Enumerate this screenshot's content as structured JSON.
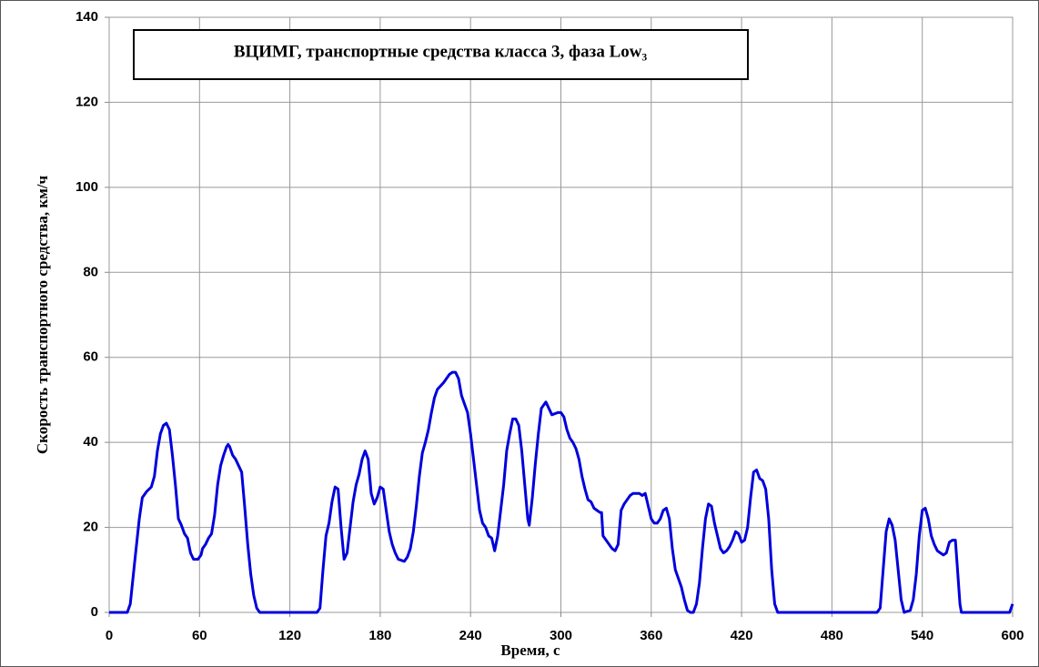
{
  "chart_data": {
    "type": "line",
    "title": "ВЦИМГ, транспортные средства класса 3, фаза Low₃",
    "x_label": "Время, с",
    "y_label": "Скорость транспортного средства, км/ч",
    "color": "#0000dd",
    "grid": true,
    "xlim": [
      0,
      600
    ],
    "xticks": [
      0,
      60,
      120,
      180,
      240,
      300,
      360,
      420,
      480,
      540,
      600
    ],
    "ylim": [
      0,
      140
    ],
    "yticks": [
      0,
      20,
      40,
      60,
      80,
      100,
      120,
      140
    ],
    "x": [
      0,
      12,
      14,
      17,
      20,
      22,
      25,
      28,
      30,
      32,
      34,
      36,
      38,
      40,
      42,
      44,
      46,
      48,
      50,
      52,
      54,
      56,
      59,
      61,
      62,
      64,
      66,
      68,
      70,
      72,
      74,
      76,
      78,
      79,
      80,
      82,
      84,
      86,
      88,
      90,
      92,
      94,
      96,
      98,
      100,
      138,
      140,
      142,
      144,
      146,
      148,
      150,
      152,
      154,
      156,
      158,
      160,
      162,
      164,
      166,
      168,
      170,
      172,
      174,
      176,
      178,
      180,
      182,
      184,
      186,
      188,
      190,
      192,
      196,
      198,
      200,
      202,
      204,
      206,
      208,
      210,
      212,
      214,
      216,
      218,
      222,
      226,
      228,
      230,
      232,
      234,
      236,
      238,
      240,
      242,
      244,
      246,
      248,
      250,
      252,
      254,
      256,
      258,
      260,
      262,
      264,
      266,
      268,
      270,
      272,
      274,
      276,
      278,
      279,
      281,
      283,
      285,
      287,
      290,
      292,
      294,
      298,
      300,
      302,
      304,
      306,
      308,
      310,
      312,
      314,
      316,
      318,
      320,
      322,
      324,
      326,
      327,
      328,
      330,
      332,
      334,
      336,
      338,
      340,
      342,
      344,
      346,
      348,
      352,
      354,
      356,
      358,
      360,
      362,
      364,
      366,
      368,
      370,
      372,
      374,
      376,
      378,
      380,
      382,
      384,
      386,
      388,
      390,
      392,
      394,
      396,
      398,
      400,
      402,
      404,
      406,
      408,
      410,
      412,
      414,
      416,
      418,
      420,
      422,
      424,
      426,
      428,
      430,
      432,
      434,
      436,
      438,
      440,
      442,
      444,
      510,
      512,
      514,
      516,
      518,
      520,
      522,
      524,
      526,
      528,
      532,
      534,
      536,
      538,
      540,
      542,
      544,
      546,
      548,
      550,
      552,
      554,
      556,
      558,
      560,
      562,
      563,
      565,
      566,
      598,
      600
    ],
    "values": [
      0,
      0,
      2,
      12,
      22,
      27,
      28.5,
      29.5,
      32,
      38,
      42,
      44,
      44.5,
      43,
      37,
      30,
      22,
      20.5,
      18.5,
      17.5,
      14,
      12.5,
      12.5,
      13.5,
      15,
      16,
      17.5,
      18.5,
      23,
      30,
      34.5,
      37,
      39,
      39.5,
      39,
      37,
      36,
      34.5,
      33,
      25,
      16,
      9,
      4,
      1,
      0,
      0,
      1,
      10,
      18,
      21,
      26,
      29.5,
      29,
      20,
      12.5,
      14,
      20,
      26,
      30,
      32.5,
      36,
      38,
      36,
      28,
      25.5,
      27,
      29.5,
      29,
      24,
      19,
      16,
      14,
      12.5,
      12,
      13,
      15,
      19,
      25,
      32,
      37.5,
      40,
      43,
      47,
      50.5,
      52.5,
      54,
      56,
      56.5,
      56.5,
      55,
      51,
      49,
      47,
      42,
      36,
      30,
      24,
      21,
      20,
      18,
      17.5,
      14.5,
      18,
      24,
      30,
      38,
      42,
      45.5,
      45.5,
      44,
      38,
      30,
      22,
      20.5,
      27,
      35,
      42,
      48,
      49.5,
      48,
      46.5,
      47,
      47,
      46,
      43,
      41,
      40,
      38.5,
      36,
      32,
      29,
      26.5,
      26,
      24.5,
      24,
      23.5,
      23.5,
      18,
      17,
      16,
      15,
      14.5,
      16,
      24,
      25.5,
      26.5,
      27.5,
      28,
      28,
      27.5,
      28,
      25,
      22,
      21,
      21,
      22,
      24,
      24.5,
      22,
      15,
      10,
      8,
      6,
      3,
      0.5,
      0,
      0,
      2,
      7,
      15,
      22,
      25.5,
      25,
      21,
      18,
      15,
      14,
      14.5,
      15.5,
      17,
      19,
      18.5,
      16.5,
      17,
      20,
      27,
      33,
      33.5,
      31.5,
      31,
      29,
      22,
      10,
      2,
      0,
      0,
      1,
      10,
      19,
      22,
      20.5,
      17,
      10,
      3,
      0,
      0.5,
      3,
      9,
      18,
      24,
      24.5,
      22,
      18,
      16,
      14.5,
      14,
      13.5,
      14,
      16.5,
      17,
      17,
      12,
      2,
      0,
      0,
      2
    ]
  }
}
